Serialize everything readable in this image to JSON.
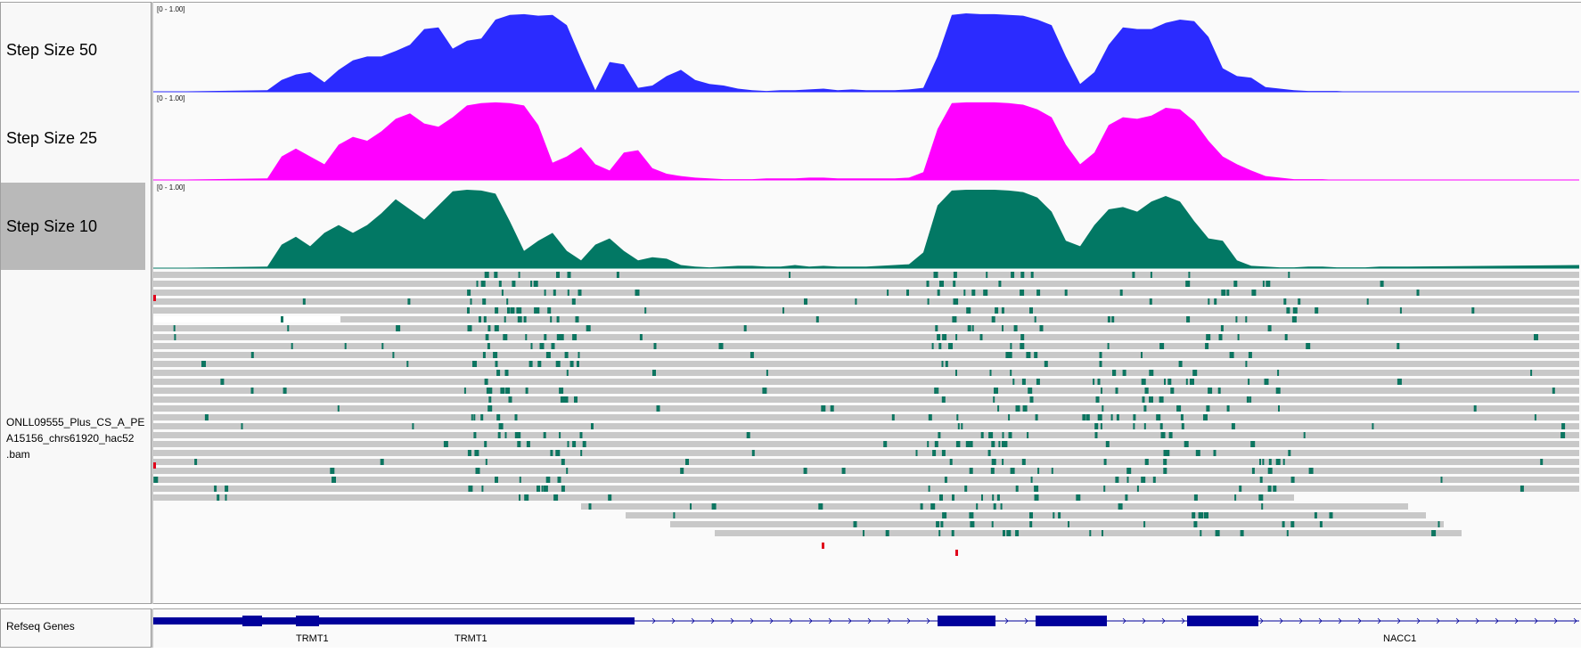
{
  "tracks": [
    {
      "name": "Step Size 50",
      "range": "[0 - 1.00]",
      "color": "#2b2bff",
      "selected": false
    },
    {
      "name": "Step Size 25",
      "range": "[0 - 1.00]",
      "color": "#ff00ff",
      "selected": false
    },
    {
      "name": "Step Size 10",
      "range": "[0 - 1.00]",
      "color": "#027864",
      "selected": true
    }
  ],
  "alignment_track": {
    "name_lines": [
      "ONLL09555_Plus_CS_A_PE",
      "A15156_chrs61920_hac52",
      ".bam"
    ],
    "read_color": "#c8c8c8",
    "mod_color": "#0c7560",
    "mismatch_color": "#e0001b"
  },
  "refseq": {
    "name": "Refseq Genes",
    "color": "#00009b",
    "genes": [
      {
        "label": "TRMT1"
      },
      {
        "label": "TRMT1"
      },
      {
        "label": "NACC1"
      }
    ]
  },
  "chart_data": {
    "type": "area",
    "note_series": "coverage profiles for three step sizes; x is fractional position across view (0-1), y is fraction 0-1",
    "ylim": [
      0,
      1
    ],
    "series": [
      {
        "name": "Step Size 50",
        "x": [
          0.0,
          0.08,
          0.09,
          0.1,
          0.11,
          0.12,
          0.13,
          0.14,
          0.15,
          0.16,
          0.17,
          0.18,
          0.19,
          0.2,
          0.21,
          0.22,
          0.23,
          0.24,
          0.25,
          0.26,
          0.27,
          0.28,
          0.29,
          0.3,
          0.31,
          0.32,
          0.33,
          0.34,
          0.35,
          0.36,
          0.37,
          0.38,
          0.39,
          0.4,
          0.41,
          0.42,
          0.43,
          0.44,
          0.45,
          0.46,
          0.47,
          0.48,
          0.49,
          0.5,
          0.51,
          0.52,
          0.53,
          0.54,
          0.55,
          0.56,
          0.57,
          0.58,
          0.59,
          0.6,
          0.61,
          0.62,
          0.63,
          0.64,
          0.65,
          0.66,
          0.67,
          0.68,
          0.69,
          0.7,
          0.71,
          0.72,
          0.73,
          0.74,
          0.75,
          0.76,
          0.77,
          0.78,
          0.79,
          0.8,
          0.81,
          0.82,
          0.83,
          0.84,
          0.85,
          0.86,
          0.87,
          0.88,
          1.0
        ],
        "y": [
          0.0,
          0.02,
          0.15,
          0.22,
          0.25,
          0.12,
          0.28,
          0.4,
          0.45,
          0.45,
          0.52,
          0.6,
          0.8,
          0.82,
          0.55,
          0.65,
          0.68,
          0.92,
          0.98,
          0.99,
          0.97,
          0.98,
          0.85,
          0.42,
          0.02,
          0.38,
          0.35,
          0.05,
          0.08,
          0.2,
          0.28,
          0.15,
          0.1,
          0.08,
          0.04,
          0.02,
          0.01,
          0.02,
          0.02,
          0.03,
          0.04,
          0.02,
          0.03,
          0.02,
          0.02,
          0.02,
          0.03,
          0.05,
          0.45,
          0.98,
          1.0,
          0.99,
          0.99,
          0.98,
          0.97,
          0.92,
          0.85,
          0.45,
          0.1,
          0.25,
          0.6,
          0.82,
          0.8,
          0.8,
          0.88,
          0.92,
          0.9,
          0.7,
          0.3,
          0.2,
          0.18,
          0.06,
          0.04,
          0.02,
          0.01,
          0.01,
          0.01,
          0.0,
          0.0,
          0.0,
          0.0,
          0.0,
          0.0
        ]
      },
      {
        "name": "Step Size 25",
        "x": [
          0.0,
          0.08,
          0.09,
          0.1,
          0.11,
          0.12,
          0.13,
          0.14,
          0.15,
          0.16,
          0.17,
          0.18,
          0.19,
          0.2,
          0.21,
          0.22,
          0.23,
          0.24,
          0.25,
          0.26,
          0.27,
          0.28,
          0.29,
          0.3,
          0.31,
          0.32,
          0.33,
          0.34,
          0.35,
          0.36,
          0.37,
          0.38,
          0.39,
          0.4,
          0.41,
          0.42,
          0.43,
          0.44,
          0.45,
          0.46,
          0.47,
          0.48,
          0.49,
          0.5,
          0.51,
          0.52,
          0.53,
          0.54,
          0.55,
          0.56,
          0.57,
          0.58,
          0.59,
          0.6,
          0.61,
          0.62,
          0.63,
          0.64,
          0.65,
          0.66,
          0.67,
          0.68,
          0.69,
          0.7,
          0.71,
          0.72,
          0.73,
          0.74,
          0.75,
          0.76,
          0.77,
          0.78,
          0.79,
          0.8,
          0.81,
          0.82,
          0.83,
          0.84,
          0.85,
          0.86,
          0.87,
          0.88,
          1.0
        ],
        "y": [
          0.0,
          0.02,
          0.3,
          0.4,
          0.3,
          0.2,
          0.45,
          0.55,
          0.5,
          0.62,
          0.78,
          0.85,
          0.72,
          0.68,
          0.8,
          0.95,
          0.98,
          0.99,
          0.98,
          0.95,
          0.7,
          0.22,
          0.3,
          0.42,
          0.2,
          0.12,
          0.35,
          0.38,
          0.15,
          0.08,
          0.05,
          0.03,
          0.02,
          0.01,
          0.01,
          0.01,
          0.02,
          0.02,
          0.02,
          0.03,
          0.03,
          0.02,
          0.02,
          0.02,
          0.02,
          0.02,
          0.03,
          0.1,
          0.65,
          0.98,
          0.99,
          0.99,
          0.99,
          0.98,
          0.96,
          0.9,
          0.8,
          0.45,
          0.2,
          0.35,
          0.7,
          0.8,
          0.78,
          0.82,
          0.92,
          0.9,
          0.75,
          0.5,
          0.3,
          0.2,
          0.12,
          0.05,
          0.03,
          0.01,
          0.01,
          0.01,
          0.0,
          0.0,
          0.0,
          0.0,
          0.0,
          0.0,
          0.0
        ]
      },
      {
        "name": "Step Size 10",
        "x": [
          0.0,
          0.08,
          0.09,
          0.1,
          0.11,
          0.12,
          0.13,
          0.14,
          0.15,
          0.16,
          0.17,
          0.18,
          0.19,
          0.2,
          0.21,
          0.22,
          0.23,
          0.24,
          0.25,
          0.26,
          0.27,
          0.28,
          0.29,
          0.3,
          0.31,
          0.32,
          0.33,
          0.34,
          0.35,
          0.36,
          0.37,
          0.38,
          0.39,
          0.4,
          0.41,
          0.42,
          0.43,
          0.44,
          0.45,
          0.46,
          0.47,
          0.48,
          0.49,
          0.5,
          0.51,
          0.52,
          0.53,
          0.54,
          0.55,
          0.56,
          0.57,
          0.58,
          0.59,
          0.6,
          0.61,
          0.62,
          0.63,
          0.64,
          0.65,
          0.66,
          0.67,
          0.68,
          0.69,
          0.7,
          0.71,
          0.72,
          0.73,
          0.74,
          0.75,
          0.76,
          0.77,
          0.78,
          0.79,
          0.8,
          0.81,
          0.82,
          0.83,
          0.84,
          0.85,
          0.86,
          0.87,
          0.88,
          1.0
        ],
        "y": [
          0.0,
          0.02,
          0.3,
          0.4,
          0.28,
          0.45,
          0.55,
          0.45,
          0.55,
          0.7,
          0.88,
          0.75,
          0.62,
          0.8,
          0.98,
          1.0,
          0.99,
          0.95,
          0.6,
          0.22,
          0.35,
          0.45,
          0.22,
          0.1,
          0.3,
          0.38,
          0.22,
          0.1,
          0.14,
          0.12,
          0.04,
          0.02,
          0.01,
          0.02,
          0.03,
          0.03,
          0.02,
          0.02,
          0.04,
          0.02,
          0.03,
          0.02,
          0.02,
          0.02,
          0.03,
          0.04,
          0.05,
          0.2,
          0.8,
          0.99,
          1.0,
          1.0,
          1.0,
          0.99,
          0.97,
          0.9,
          0.72,
          0.35,
          0.28,
          0.55,
          0.75,
          0.78,
          0.72,
          0.85,
          0.92,
          0.85,
          0.6,
          0.38,
          0.35,
          0.1,
          0.03,
          0.02,
          0.01,
          0.01,
          0.02,
          0.02,
          0.01,
          0.01,
          0.01,
          0.02,
          0.02,
          0.02,
          0.04
        ]
      }
    ]
  }
}
